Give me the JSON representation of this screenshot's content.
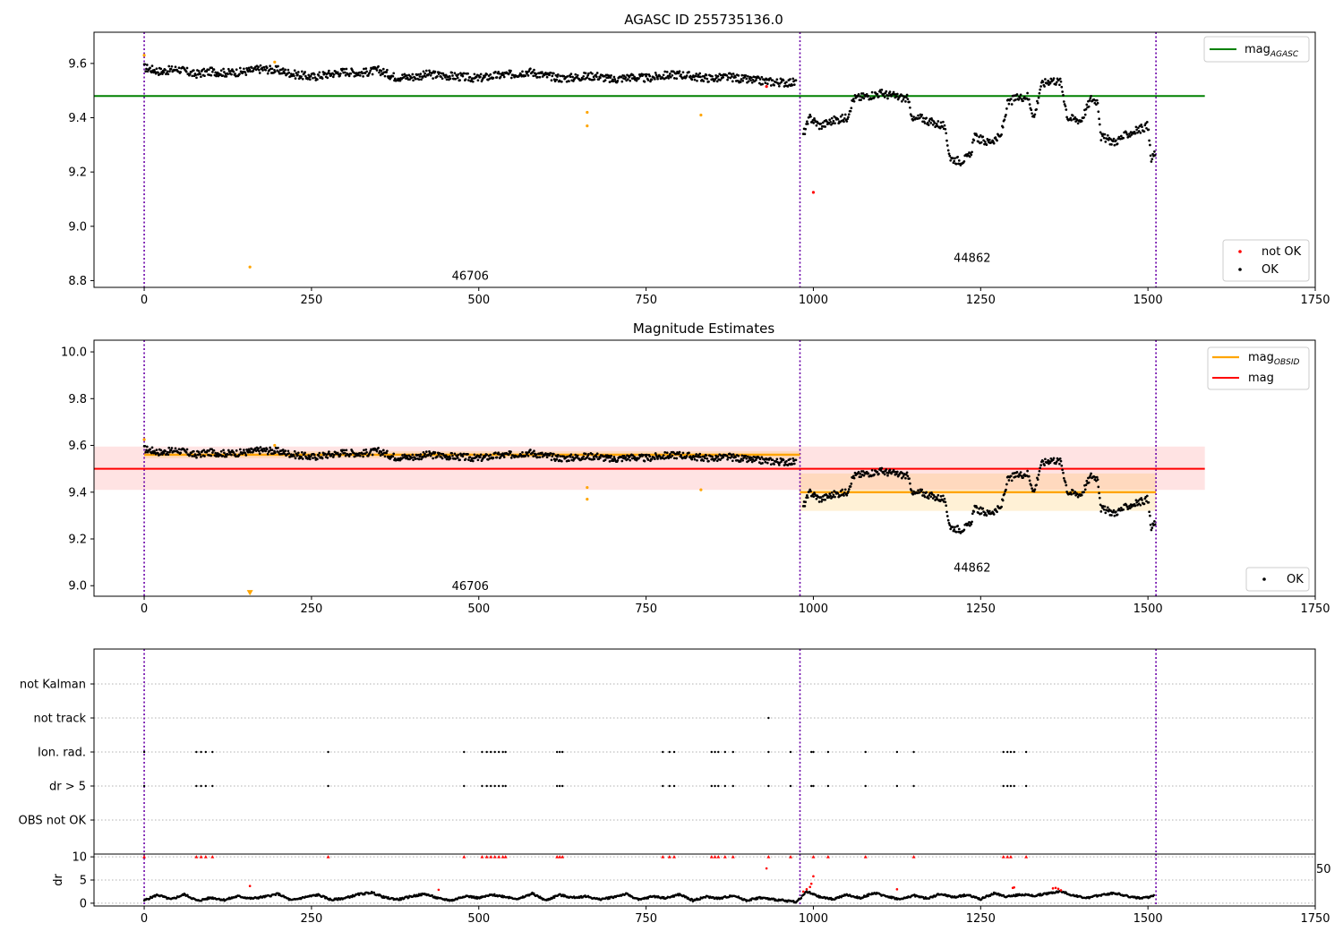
{
  "chart_data": [
    {
      "type": "scatter",
      "title": "AGASC ID 255735136.0",
      "xlim": [
        -75,
        1750
      ],
      "ylim": [
        8.775,
        9.715
      ],
      "xticks": [
        0,
        250,
        500,
        750,
        1000,
        1250,
        1500,
        1750
      ],
      "xtick_labels": [
        "0",
        "250",
        "500",
        "750",
        "1000",
        "1250",
        "1500",
        "1750"
      ],
      "yticks": [
        8.8,
        9.0,
        9.2,
        9.4,
        9.6
      ],
      "ytick_labels": [
        "8.8",
        "9.0",
        "9.2",
        "9.4",
        "9.6"
      ],
      "obsid_boundaries": [
        0,
        980,
        1512
      ],
      "obsid_labels": [
        {
          "x": 490,
          "y": 8.82,
          "text": "46706"
        },
        {
          "x": 1240,
          "y": 8.885,
          "text": "44862"
        }
      ],
      "reference_line": {
        "name": "mag_AGASC",
        "y": 9.48,
        "x_range": [
          -75,
          1585
        ],
        "color": "#008000"
      },
      "series": [
        {
          "name": "OK",
          "color": "#000000",
          "segments": [
            {
              "x": [
                0,
                25,
                50,
                75,
                100,
                125,
                150,
                175,
                200,
                225,
                250,
                275,
                300,
                325,
                350,
                375,
                400,
                425,
                450,
                475,
                500,
                525,
                550,
                575,
                600,
                625,
                650,
                675,
                700,
                725,
                750,
                775,
                800,
                825,
                850,
                875,
                900,
                925,
                950,
                975
              ],
              "y": [
                9.585,
                9.57,
                9.58,
                9.56,
                9.57,
                9.565,
                9.57,
                9.58,
                9.575,
                9.56,
                9.55,
                9.56,
                9.57,
                9.565,
                9.575,
                9.55,
                9.55,
                9.56,
                9.555,
                9.55,
                9.545,
                9.555,
                9.56,
                9.57,
                9.555,
                9.545,
                9.55,
                9.555,
                9.54,
                9.55,
                9.545,
                9.555,
                9.56,
                9.55,
                9.545,
                9.55,
                9.54,
                9.535,
                9.53,
                9.53
              ]
            },
            {
              "x": [
                985,
                995,
                1010,
                1030,
                1050,
                1060,
                1080,
                1100,
                1120,
                1140,
                1150,
                1160,
                1180,
                1195,
                1205,
                1220,
                1235,
                1240,
                1260,
                1280,
                1290,
                1300,
                1320,
                1330,
                1340,
                1355,
                1370,
                1380,
                1400,
                1415,
                1425,
                1430,
                1450,
                1470,
                1490,
                1500,
                1505,
                1512
              ],
              "y": [
                9.34,
                9.4,
                9.37,
                9.39,
                9.4,
                9.47,
                9.48,
                9.49,
                9.48,
                9.47,
                9.39,
                9.4,
                9.38,
                9.37,
                9.25,
                9.24,
                9.26,
                9.33,
                9.31,
                9.33,
                9.45,
                9.47,
                9.48,
                9.4,
                9.52,
                9.54,
                9.53,
                9.4,
                9.39,
                9.47,
                9.46,
                9.33,
                9.31,
                9.34,
                9.36,
                9.37,
                9.24,
                9.28
              ]
            }
          ]
        },
        {
          "name": "not OK",
          "color": "#ff0000",
          "x": [
            930,
            1000
          ],
          "y": [
            9.515,
            9.125
          ]
        },
        {
          "name": "suspect",
          "color": "#ffa500",
          "x": [
            0,
            158,
            195,
            662,
            662,
            832
          ],
          "y": [
            9.63,
            8.85,
            9.605,
            9.42,
            9.37,
            9.41
          ]
        }
      ],
      "legends": [
        {
          "position": "top-right",
          "entries": [
            {
              "label": "mag",
              "sub": "AGASC",
              "marker": "line",
              "color": "#008000"
            }
          ]
        },
        {
          "position": "lower-right",
          "entries": [
            {
              "label": "not OK",
              "marker": "dot",
              "color": "#ff0000"
            },
            {
              "label": "OK",
              "marker": "dot",
              "color": "#000000"
            }
          ]
        }
      ]
    },
    {
      "type": "scatter",
      "title": "Magnitude Estimates",
      "xlim": [
        -75,
        1750
      ],
      "ylim": [
        8.955,
        10.05
      ],
      "xticks": [
        0,
        250,
        500,
        750,
        1000,
        1250,
        1500,
        1750
      ],
      "xtick_labels": [
        "0",
        "250",
        "500",
        "750",
        "1000",
        "1250",
        "1500",
        "1750"
      ],
      "yticks": [
        9.0,
        9.2,
        9.4,
        9.6,
        9.8,
        10.0
      ],
      "ytick_labels": [
        "9.0",
        "9.2",
        "9.4",
        "9.6",
        "9.8",
        "10.0"
      ],
      "obsid_boundaries": [
        0,
        980,
        1512
      ],
      "obsid_labels": [
        {
          "x": 490,
          "y": 9.0,
          "text": "46706"
        },
        {
          "x": 1240,
          "y": 9.08,
          "text": "44862"
        }
      ],
      "mag_line": {
        "name": "mag",
        "y": 9.5,
        "band": [
          9.41,
          9.595
        ],
        "x_range": [
          -75,
          1585
        ],
        "color": "#ff0000"
      },
      "obsid_mags": [
        {
          "x_range": [
            0,
            980
          ],
          "y": 9.56,
          "band": [
            9.545,
            9.575
          ]
        },
        {
          "x_range": [
            980,
            1512
          ],
          "y": 9.4,
          "band": [
            9.32,
            9.48
          ]
        }
      ],
      "series": [
        {
          "name": "OK",
          "color": "#000000",
          "segments": [
            {
              "x": [
                0,
                25,
                50,
                75,
                100,
                125,
                150,
                175,
                200,
                225,
                250,
                275,
                300,
                325,
                350,
                375,
                400,
                425,
                450,
                475,
                500,
                525,
                550,
                575,
                600,
                625,
                650,
                675,
                700,
                725,
                750,
                775,
                800,
                825,
                850,
                875,
                900,
                925,
                950,
                975
              ],
              "y": [
                9.585,
                9.57,
                9.58,
                9.56,
                9.57,
                9.565,
                9.57,
                9.58,
                9.575,
                9.56,
                9.55,
                9.56,
                9.57,
                9.565,
                9.575,
                9.55,
                9.55,
                9.56,
                9.555,
                9.55,
                9.545,
                9.555,
                9.56,
                9.57,
                9.555,
                9.545,
                9.55,
                9.555,
                9.54,
                9.55,
                9.545,
                9.555,
                9.56,
                9.55,
                9.545,
                9.55,
                9.54,
                9.535,
                9.53,
                9.53
              ]
            },
            {
              "x": [
                985,
                995,
                1010,
                1030,
                1050,
                1060,
                1080,
                1100,
                1120,
                1140,
                1150,
                1160,
                1180,
                1195,
                1205,
                1220,
                1235,
                1240,
                1260,
                1280,
                1290,
                1300,
                1320,
                1330,
                1340,
                1355,
                1370,
                1380,
                1400,
                1415,
                1425,
                1430,
                1450,
                1470,
                1490,
                1500,
                1505,
                1512
              ],
              "y": [
                9.34,
                9.4,
                9.37,
                9.39,
                9.4,
                9.47,
                9.48,
                9.49,
                9.48,
                9.47,
                9.39,
                9.4,
                9.38,
                9.37,
                9.25,
                9.24,
                9.26,
                9.33,
                9.31,
                9.33,
                9.45,
                9.47,
                9.48,
                9.4,
                9.52,
                9.54,
                9.53,
                9.4,
                9.39,
                9.47,
                9.46,
                9.33,
                9.31,
                9.34,
                9.36,
                9.37,
                9.24,
                9.28
              ]
            }
          ]
        },
        {
          "name": "suspect",
          "color": "#ffa500",
          "x": [
            0,
            195,
            662,
            662,
            832
          ],
          "y": [
            9.625,
            9.6,
            9.42,
            9.37,
            9.41
          ]
        },
        {
          "name": "below-range",
          "color": "#ffa500",
          "marker": "triangle-down",
          "x": [
            158
          ],
          "y": [
            8.97
          ]
        }
      ],
      "legends": [
        {
          "position": "top-right",
          "entries": [
            {
              "label": "mag",
              "sub": "OBSID",
              "marker": "line",
              "color": "#ffa500"
            },
            {
              "label": "mag",
              "marker": "line",
              "color": "#ff0000"
            }
          ]
        },
        {
          "position": "lower-right",
          "entries": [
            {
              "label": "OK",
              "marker": "dot",
              "color": "#000000"
            }
          ]
        }
      ]
    },
    {
      "type": "scatter",
      "xlim": [
        -75,
        1750
      ],
      "flag_rows": [
        "not Kalman",
        "not track",
        "Ion. rad.",
        "dr > 5",
        "OBS not OK"
      ],
      "obsid_boundaries": [
        0,
        980,
        1512
      ],
      "flags": {
        "not Kalman": [],
        "not track": [
          933
        ],
        "Ion. rad.": [
          0,
          78,
          85,
          92,
          102,
          275,
          478,
          505,
          512,
          518,
          524,
          530,
          536,
          540,
          617,
          621,
          625,
          775,
          785,
          792,
          848,
          853,
          858,
          868,
          880,
          933,
          966,
          997,
          1000,
          1022,
          1078,
          1125,
          1150,
          1284,
          1290,
          1295,
          1300,
          1318
        ],
        "dr > 5": [
          0,
          78,
          85,
          92,
          102,
          275,
          478,
          505,
          512,
          518,
          524,
          530,
          536,
          540,
          617,
          621,
          625,
          775,
          785,
          792,
          848,
          853,
          858,
          868,
          880,
          933,
          966,
          997,
          1000,
          1022,
          1078,
          1125,
          1150,
          1284,
          1290,
          1295,
          1300,
          1318
        ],
        "OBS not OK": []
      }
    },
    {
      "type": "scatter",
      "ylabel": "dr",
      "xlim": [
        -75,
        1750
      ],
      "ylim": [
        -0.6,
        10.6
      ],
      "xticks": [
        0,
        250,
        500,
        750,
        1000,
        1250,
        1500,
        1750
      ],
      "xtick_labels": [
        "0",
        "250",
        "500",
        "750",
        "1000",
        "1250",
        "1500",
        "1750"
      ],
      "yticks": [
        0,
        5,
        10
      ],
      "ytick_labels": [
        "0",
        "5",
        "10"
      ],
      "ygrid": [
        0,
        5,
        10
      ],
      "obsid_boundaries": [
        0,
        980,
        1512
      ],
      "series": [
        {
          "name": "dr",
          "color": "#000000",
          "x": [
            0,
            20,
            40,
            60,
            80,
            100,
            120,
            140,
            160,
            180,
            200,
            220,
            240,
            260,
            280,
            300,
            320,
            340,
            360,
            380,
            400,
            420,
            440,
            460,
            480,
            500,
            520,
            540,
            560,
            580,
            600,
            620,
            640,
            660,
            680,
            700,
            720,
            740,
            760,
            780,
            800,
            820,
            840,
            860,
            880,
            900,
            920,
            940,
            960,
            975,
            990,
            1010,
            1030,
            1050,
            1070,
            1090,
            1110,
            1130,
            1150,
            1170,
            1190,
            1210,
            1230,
            1250,
            1270,
            1290,
            1310,
            1330,
            1350,
            1370,
            1390,
            1410,
            1430,
            1450,
            1470,
            1490,
            1510
          ],
          "y": [
            0.6,
            1.8,
            0.8,
            1.9,
            0.5,
            1.2,
            0.7,
            1.5,
            1.0,
            1.4,
            2.0,
            0.6,
            1.3,
            1.8,
            0.7,
            1.1,
            1.9,
            2.3,
            1.2,
            0.8,
            1.5,
            2.0,
            1.0,
            0.6,
            1.6,
            1.1,
            1.8,
            1.4,
            0.9,
            2.1,
            0.6,
            1.8,
            1.2,
            1.5,
            0.8,
            1.3,
            2.0,
            0.7,
            1.5,
            1.1,
            1.9,
            0.6,
            1.4,
            1.0,
            1.7,
            0.6,
            1.2,
            0.8,
            0.5,
            0.3,
            2.5,
            1.3,
            0.9,
            1.8,
            1.1,
            2.2,
            1.5,
            0.8,
            1.7,
            1.0,
            2.0,
            1.3,
            1.8,
            0.9,
            2.1,
            1.4,
            1.9,
            1.6,
            2.1,
            2.6,
            1.6,
            1.1,
            1.8,
            2.2,
            1.5,
            1.0,
            1.6
          ]
        },
        {
          "name": "dr-outlier",
          "color": "#ff0000",
          "x": [
            0,
            78,
            85,
            92,
            102,
            158,
            275,
            440,
            478,
            505,
            512,
            518,
            524,
            530,
            536,
            540,
            617,
            621,
            625,
            775,
            785,
            792,
            848,
            853,
            858,
            868,
            880,
            930,
            933,
            966,
            985,
            990,
            995,
            997,
            1000,
            1000,
            1022,
            1078,
            1125,
            1150,
            1284,
            1290,
            1295,
            1298,
            1300,
            1318,
            1358,
            1362,
            1366,
            1370
          ],
          "y": [
            10,
            10,
            10,
            10,
            10,
            3.7,
            10,
            2.9,
            10,
            10,
            10,
            10,
            10,
            10,
            10,
            10,
            10,
            10,
            10,
            10,
            10,
            10,
            10,
            10,
            10,
            10,
            10,
            7.5,
            10,
            10,
            2.5,
            3,
            3.5,
            4.2,
            5.8,
            10,
            10,
            10,
            3,
            10,
            10,
            10,
            10,
            3.3,
            3.4,
            10,
            3.2,
            3.3,
            3.1,
            2.8
          ]
        }
      ],
      "right_tick_labels": [
        "50"
      ]
    }
  ]
}
